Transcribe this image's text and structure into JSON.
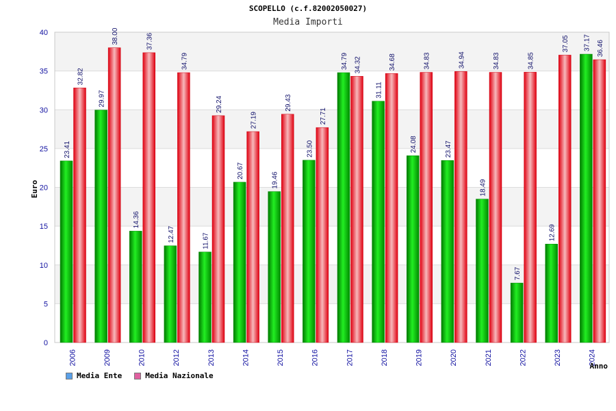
{
  "chart_data": {
    "type": "bar",
    "title": "SCOPELLO (c.f.82002050027)",
    "subtitle": "Media Importi",
    "xlabel": "Anno",
    "ylabel": "Euro",
    "ylim": [
      0,
      40
    ],
    "yticks": [
      0,
      5,
      10,
      15,
      20,
      25,
      30,
      35,
      40
    ],
    "grid": true,
    "legend_position": "bottom-left",
    "categories": [
      "2006",
      "2009",
      "2010",
      "2012",
      "2013",
      "2014",
      "2015",
      "2016",
      "2017",
      "2018",
      "2019",
      "2020",
      "2021",
      "2022",
      "2023",
      "2024"
    ],
    "series": [
      {
        "name": "Media Ente",
        "color": "#00b000",
        "legend_color": "#5aa0e8",
        "values": [
          23.41,
          29.97,
          14.36,
          12.47,
          11.67,
          20.67,
          19.46,
          23.5,
          34.79,
          31.11,
          24.08,
          23.47,
          18.49,
          7.67,
          12.69,
          37.17
        ],
        "labels": [
          "23.41",
          "29.97",
          "14.36",
          "12.47",
          "11.67",
          "20.67",
          "19.46",
          "23.50",
          "34.79",
          "31.11",
          "24.08",
          "23.47",
          "18.49",
          "7.67",
          "12.69",
          "37.17"
        ]
      },
      {
        "name": "Media Nazionale",
        "color": "#e8202a",
        "legend_color": "#e060a0",
        "values": [
          32.82,
          38.0,
          37.36,
          34.79,
          29.24,
          27.19,
          29.43,
          27.71,
          34.32,
          34.68,
          34.83,
          34.94,
          34.83,
          34.85,
          37.05,
          36.46
        ],
        "labels": [
          "32.82",
          "38.00",
          "37.36",
          "34.79",
          "29.24",
          "27.19",
          "29.43",
          "27.71",
          "34.32",
          "34.68",
          "34.83",
          "34.94",
          "34.83",
          "34.85",
          "37.05",
          "36.46"
        ]
      }
    ]
  }
}
